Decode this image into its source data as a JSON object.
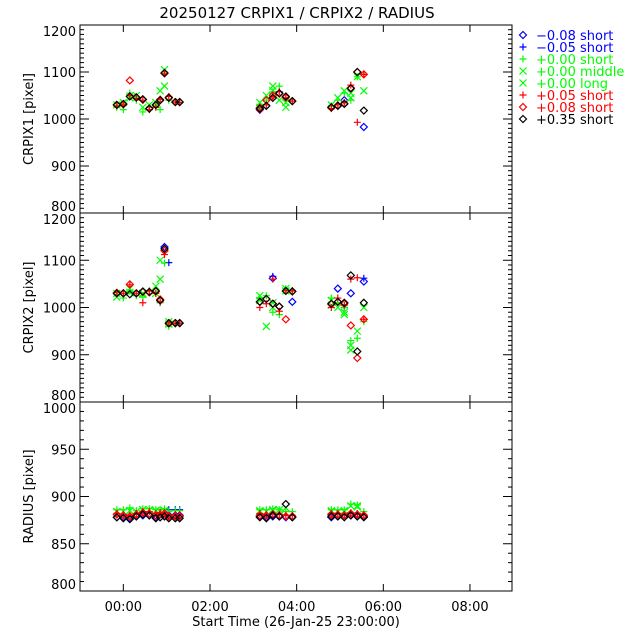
{
  "chart_data": {
    "type": "scatter",
    "title": "20250127 CRPIX1 / CRPIX2 / RADIUS",
    "xlabel": "Start Time (26-Jan-25 23:00:00)",
    "xlim": [
      -1,
      8.97
    ],
    "xticks": [
      {
        "value": 0,
        "label": "00:00"
      },
      {
        "value": 2,
        "label": "02:00"
      },
      {
        "value": 4,
        "label": "04:00"
      },
      {
        "value": 6,
        "label": "06:00"
      },
      {
        "value": 8,
        "label": "08:00"
      }
    ],
    "panels": [
      {
        "key": "crpix1",
        "ylabel": "CRPIX1 [pixel]",
        "ylim": [
          800,
          1200
        ],
        "major": 100,
        "minor": 10,
        "ticklabels": [
          "800",
          "900",
          "1000",
          "1100",
          "1200"
        ]
      },
      {
        "key": "crpix2",
        "ylabel": "CRPIX2 [pixel]",
        "ylim": [
          800,
          1200
        ],
        "major": 100,
        "minor": 10,
        "ticklabels": [
          "800",
          "900",
          "1000",
          "1100",
          "1200"
        ]
      },
      {
        "key": "radius",
        "ylabel": "RADIUS [pixel]",
        "ylim": [
          800,
          1000
        ],
        "major": 50,
        "minor": 10,
        "ticklabels": [
          "800",
          "850",
          "900",
          "950",
          "1000"
        ]
      }
    ],
    "time_hours": [
      -0.15,
      0.0,
      0.15,
      0.3,
      0.45,
      0.6,
      0.75,
      0.85,
      0.95,
      1.05,
      1.2,
      1.3,
      3.15,
      3.3,
      3.45,
      3.6,
      3.75,
      3.9,
      4.8,
      4.95,
      5.1,
      5.25,
      5.4,
      5.55
    ],
    "series": [
      {
        "name": "-0.08 short",
        "offset": "−0.08",
        "mode": "short",
        "symbol": "diamond",
        "color": "#0000ff",
        "crpix1": [
          null,
          null,
          null,
          null,
          null,
          null,
          null,
          null,
          null,
          null,
          null,
          null,
          1020,
          null,
          null,
          null,
          null,
          null,
          null,
          null,
          1040,
          null,
          null,
          983
        ],
        "crpix2": [
          null,
          null,
          null,
          null,
          null,
          null,
          null,
          null,
          1128,
          null,
          null,
          null,
          null,
          null,
          1062,
          null,
          null,
          1012,
          null,
          1040,
          null,
          1030,
          null,
          1055
        ],
        "radius": [
          878,
          878,
          877,
          879,
          880,
          880,
          878,
          878,
          879,
          880,
          880,
          880,
          879,
          878,
          879,
          879,
          878,
          878,
          878,
          879,
          880,
          880,
          879,
          879
        ]
      },
      {
        "name": "-0.05 short",
        "offset": "−0.05",
        "mode": "short",
        "symbol": "plus",
        "color": "#0000ff",
        "crpix1": [
          null,
          null,
          null,
          null,
          null,
          null,
          null,
          null,
          null,
          null,
          null,
          null,
          null,
          null,
          null,
          null,
          null,
          null,
          null,
          null,
          null,
          null,
          null,
          null
        ],
        "crpix2": [
          null,
          null,
          null,
          null,
          null,
          null,
          null,
          null,
          null,
          1095,
          null,
          null,
          null,
          null,
          1066,
          null,
          null,
          null,
          null,
          null,
          1000,
          null,
          null,
          1062
        ],
        "radius": [
          null,
          null,
          null,
          null,
          null,
          null,
          null,
          null,
          null,
          886,
          886,
          886,
          null,
          null,
          null,
          null,
          null,
          null,
          null,
          null,
          null,
          882,
          882,
          null
        ]
      },
      {
        "name": "+0.00 short",
        "offset": "+0.00",
        "mode": "short",
        "symbol": "plus",
        "color": "#00ff00",
        "crpix1": [
          1025,
          1020,
          1055,
          1040,
          1015,
          1025,
          1028,
          1020,
          1100,
          1040,
          1036,
          1035,
          1030,
          1040,
          1058,
          1070,
          1040,
          1038,
          1028,
          1040,
          1055,
          1040,
          1090,
          1095
        ],
        "crpix2": [
          1028,
          1020,
          1035,
          1025,
          1022,
          1035,
          1030,
          1010,
          1094,
          960,
          965,
          966,
          1020,
          1025,
          990,
          985,
          1040,
          1036,
          1020,
          1010,
          1000,
          930,
          935,
          970
        ],
        "radius": [
          886,
          886,
          888,
          885,
          887,
          887,
          886,
          886,
          887,
          884,
          885,
          885,
          886,
          886,
          887,
          886,
          884,
          884,
          886,
          886,
          886,
          892,
          891,
          884
        ]
      },
      {
        "name": "+0.00 middle",
        "offset": "+0.00",
        "mode": "middle",
        "symbol": "x",
        "color": "#00ff00",
        "crpix1": [
          null,
          1035,
          null,
          1050,
          null,
          1030,
          null,
          1060,
          1105,
          null,
          null,
          null,
          1035,
          1050,
          1070,
          1040,
          1025,
          null,
          1030,
          null,
          1060,
          1045,
          1090,
          null
        ],
        "crpix2": [
          1022,
          null,
          1040,
          null,
          1030,
          null,
          1045,
          1100,
          null,
          970,
          null,
          null,
          1025,
          960,
          1010,
          null,
          1040,
          null,
          1015,
          1000,
          985,
          910,
          950,
          null
        ],
        "radius": [
          884,
          884,
          885,
          884,
          886,
          886,
          885,
          884,
          885,
          null,
          null,
          null,
          884,
          884,
          885,
          886,
          888,
          null,
          884,
          884,
          884,
          890,
          890,
          null
        ]
      },
      {
        "name": "+0.00 long",
        "offset": "+0.00",
        "mode": "long",
        "symbol": "x",
        "color": "#00ff00",
        "crpix1": [
          1030,
          null,
          1045,
          null,
          1025,
          null,
          1035,
          null,
          1070,
          null,
          null,
          null,
          1025,
          null,
          1060,
          null,
          1035,
          null,
          null,
          1045,
          null,
          1055,
          null,
          1060
        ],
        "crpix2": [
          1030,
          null,
          1032,
          null,
          1028,
          null,
          1030,
          1060,
          null,
          965,
          null,
          null,
          1015,
          null,
          1000,
          null,
          1035,
          null,
          1005,
          null,
          990,
          920,
          null,
          1000
        ],
        "radius": [
          884,
          null,
          885,
          null,
          886,
          null,
          885,
          null,
          885,
          null,
          null,
          null,
          885,
          null,
          886,
          null,
          null,
          null,
          885,
          null,
          885,
          null,
          889,
          null
        ]
      },
      {
        "name": "+0.05 short",
        "offset": "+0.05",
        "mode": "short",
        "symbol": "plus",
        "color": "#ff0000",
        "crpix1": [
          1028,
          1030,
          1050,
          1044,
          1040,
          1020,
          1025,
          1042,
          1096,
          1048,
          1036,
          1035,
          1018,
          1030,
          1048,
          1058,
          1045,
          1038,
          1022,
          1030,
          1035,
          1072,
          993,
          1095
        ],
        "crpix2": [
          1032,
          1030,
          1048,
          1030,
          1010,
          1035,
          1030,
          1012,
          1112,
          968,
          967,
          967,
          1000,
          1008,
          1060,
          992,
          1036,
          1035,
          1000,
          1020,
          1005,
          1060,
          1063,
          975
        ],
        "radius": [
          882,
          881,
          880,
          882,
          884,
          884,
          882,
          883,
          883,
          880,
          881,
          881,
          882,
          881,
          882,
          881,
          880,
          880,
          882,
          882,
          881,
          883,
          882,
          881
        ]
      },
      {
        "name": "+0.08 short",
        "offset": "+0.08",
        "mode": "short",
        "symbol": "diamond",
        "color": "#ff0000",
        "crpix1": [
          1030,
          1031,
          1082,
          1046,
          1041,
          1022,
          1030,
          1041,
          1097,
          1046,
          1036,
          1036,
          1024,
          1040,
          1050,
          1054,
          1046,
          1038,
          1024,
          1029,
          1033,
          1066,
          1100,
          1095
        ],
        "crpix2": [
          1031,
          1030,
          1049,
          1030,
          1033,
          1032,
          1034,
          1017,
          1120,
          966,
          967,
          967,
          1012,
          1018,
          1008,
          1002,
          975,
          1034,
          1007,
          1012,
          1008,
          962,
          893,
          975
        ],
        "radius": [
          881,
          880,
          879,
          881,
          883,
          882,
          880,
          881,
          882,
          879,
          879,
          879,
          880,
          880,
          881,
          880,
          879,
          879,
          881,
          881,
          880,
          882,
          881,
          880
        ]
      },
      {
        "name": "+0.35 short",
        "offset": "+0.35",
        "mode": "short",
        "symbol": "diamond",
        "color": "#000000",
        "crpix1": [
          1030,
          1032,
          1048,
          1046,
          1042,
          1022,
          1030,
          1040,
          1098,
          1045,
          1036,
          1036,
          1022,
          1028,
          1045,
          1055,
          1048,
          1038,
          1025,
          1028,
          1032,
          1065,
          1100,
          1018
        ],
        "crpix2": [
          1030,
          1030,
          1028,
          1030,
          1034,
          1033,
          1035,
          1015,
          1124,
          967,
          967,
          967,
          1012,
          1018,
          1008,
          1002,
          1035,
          1034,
          1008,
          1012,
          1010,
          1068,
          907,
          1010
        ],
        "radius": [
          878,
          877,
          876,
          879,
          881,
          880,
          877,
          878,
          879,
          877,
          877,
          877,
          878,
          877,
          880,
          879,
          892,
          878,
          879,
          879,
          878,
          880,
          879,
          878
        ]
      }
    ]
  }
}
